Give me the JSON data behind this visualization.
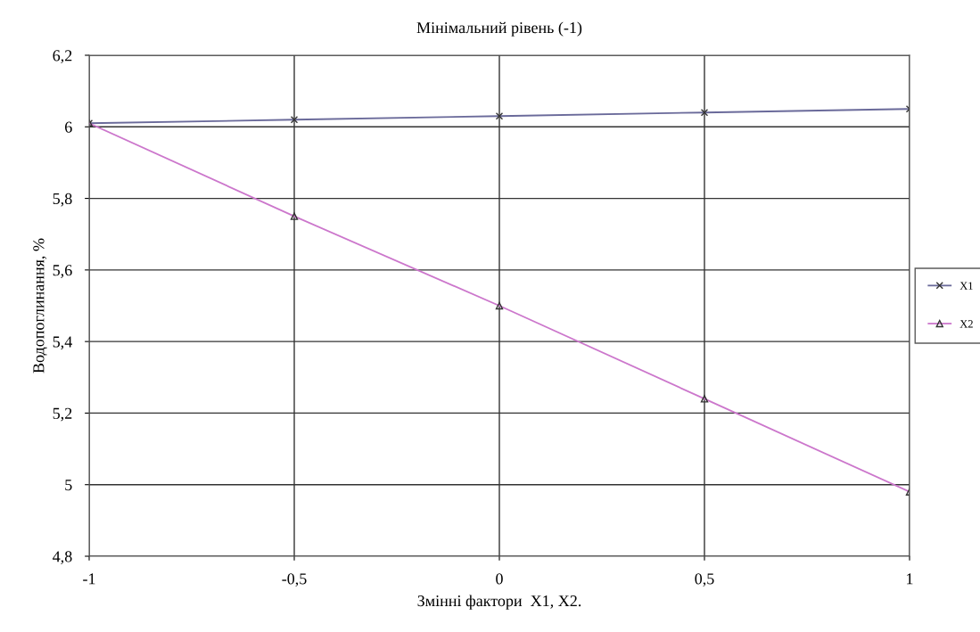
{
  "chart_data": {
    "type": "line",
    "title": "Мінімальний рівень (-1)",
    "xlabel": "Змінні фактори  X1, X2.",
    "ylabel": "Водопоглинання, %",
    "x": [
      -1,
      -0.5,
      0,
      0.5,
      1
    ],
    "series": [
      {
        "name": "X1",
        "color": "#6a6a9a",
        "values": [
          6.01,
          6.02,
          6.03,
          6.04,
          6.05
        ],
        "marker": "cross"
      },
      {
        "name": "X2",
        "color": "#cc77cc",
        "values": [
          6.01,
          5.75,
          5.5,
          5.24,
          4.98
        ],
        "marker": "triangle"
      }
    ],
    "xlim": [
      -1,
      1
    ],
    "xticks": [
      {
        "value": -1,
        "label": "-1"
      },
      {
        "value": -0.5,
        "label": "-0,5"
      },
      {
        "value": 0,
        "label": "0"
      },
      {
        "value": 0.5,
        "label": "0,5"
      },
      {
        "value": 1,
        "label": "1"
      }
    ],
    "ylim": [
      4.8,
      6.2
    ],
    "yticks": [
      {
        "value": 4.8,
        "label": "4,8"
      },
      {
        "value": 5,
        "label": "5"
      },
      {
        "value": 5.2,
        "label": "5,2"
      },
      {
        "value": 5.4,
        "label": "5,4"
      },
      {
        "value": 5.6,
        "label": "5,6"
      },
      {
        "value": 5.8,
        "label": "5,8"
      },
      {
        "value": 6,
        "label": "6"
      },
      {
        "value": 6.2,
        "label": "6,2"
      }
    ],
    "grid": true,
    "legend": "right"
  }
}
